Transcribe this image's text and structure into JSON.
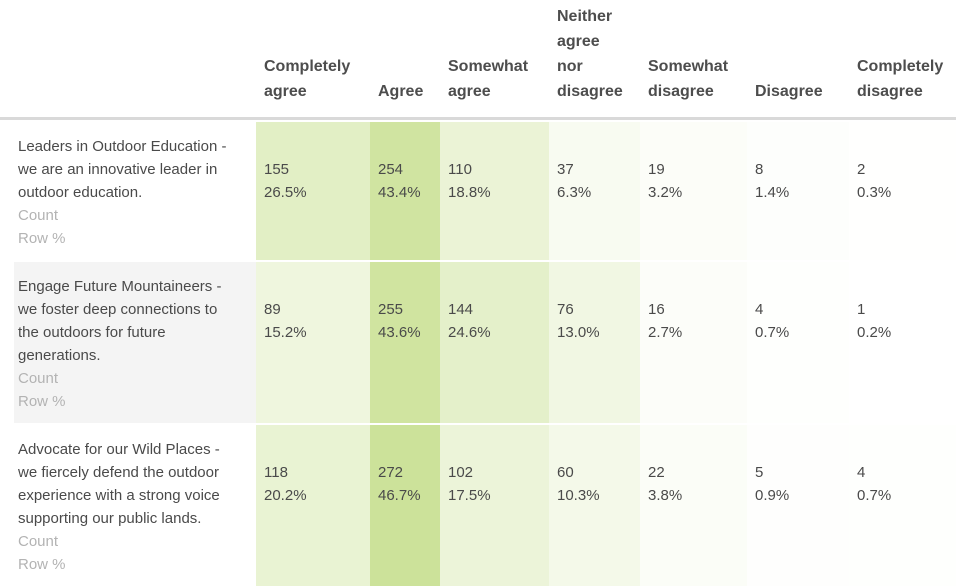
{
  "colors": {
    "background": "#ffffff",
    "body_text": "#4a4a4a",
    "header_text": "#4d4d4d",
    "muted_text": "#b3b3b3",
    "header_divider": "#d9d9d9",
    "alt_row_label_bg": "#f4f4f4"
  },
  "chart_data": {
    "type": "table",
    "subtype": "survey-crosstab-heatmap",
    "columns": [
      {
        "label": "Completely agree",
        "lines": [
          "Completely",
          "agree"
        ]
      },
      {
        "label": "Agree",
        "lines": [
          "Agree"
        ]
      },
      {
        "label": "Somewhat agree",
        "lines": [
          "Somewhat",
          "agree"
        ]
      },
      {
        "label": "Neither agree nor disagree",
        "lines": [
          "Neither",
          "agree",
          "nor",
          "disagree"
        ]
      },
      {
        "label": "Somewhat disagree",
        "lines": [
          "Somewhat",
          "disagree"
        ]
      },
      {
        "label": "Disagree",
        "lines": [
          "Disagree"
        ]
      },
      {
        "label": "Completely disagree",
        "lines": [
          "Completely",
          "disagree"
        ]
      }
    ],
    "cell_metrics": [
      "Count",
      "Row %"
    ],
    "rows": [
      {
        "statement": "Leaders in Outdoor Education - we are an innovative leader in outdoor education.",
        "statement_lines": [
          "Leaders in Outdoor Education -",
          "we are an innovative leader in",
          "outdoor education."
        ],
        "counts": [
          155,
          254,
          110,
          37,
          19,
          8,
          2
        ],
        "row_pcts": [
          "26.5",
          "43.4",
          "18.8",
          "6.3",
          "3.2",
          "1.4",
          "0.3"
        ],
        "label_shaded": false
      },
      {
        "statement": "Engage Future Mountaineers - we foster deep connections to the outdoors for future generations.",
        "statement_lines": [
          "Engage Future Mountaineers -",
          "we foster deep connections to",
          "the outdoors for future",
          "generations."
        ],
        "counts": [
          89,
          255,
          144,
          76,
          16,
          4,
          1
        ],
        "row_pcts": [
          "15.2",
          "43.6",
          "24.6",
          "13.0",
          "2.7",
          "0.7",
          "0.2"
        ],
        "label_shaded": true
      },
      {
        "statement": "Advocate for our Wild Places - we fiercely defend the outdoor experience with a strong voice supporting our public lands.",
        "statement_lines": [
          "Advocate for our Wild Places -",
          "we fiercely defend the outdoor",
          "experience with a strong voice",
          "supporting our public lands."
        ],
        "counts": [
          118,
          272,
          102,
          60,
          22,
          5,
          4
        ],
        "row_pcts": [
          "20.2",
          "46.7",
          "17.5",
          "10.3",
          "3.8",
          "0.9",
          "0.7"
        ],
        "label_shaded": false
      }
    ],
    "heatmap": {
      "min_color": "#ffffff",
      "max_color": "#cce299",
      "scale_max_pct": 47
    },
    "legend": "none",
    "grid": "off"
  }
}
